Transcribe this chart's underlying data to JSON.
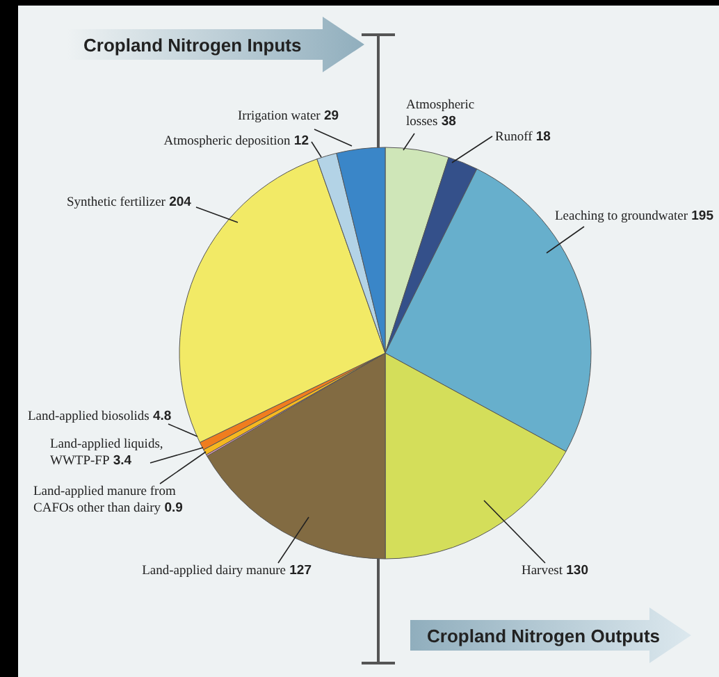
{
  "chart_data": {
    "type": "pie",
    "categories": [
      "Atmospheric losses",
      "Runoff",
      "Leaching to groundwater",
      "Harvest",
      "Land-applied dairy manure",
      "Land-applied manure from CAFOs other than dairy",
      "Land-applied liquids, WWTP-FP",
      "Land-applied biosolids",
      "Synthetic fertilizer",
      "Atmospheric deposition",
      "Irrigation water"
    ],
    "values": [
      38,
      18,
      195,
      130,
      127,
      0.9,
      3.4,
      4.8,
      204,
      12,
      29
    ],
    "colors": [
      "#cfe6b8",
      "#34508a",
      "#67afcc",
      "#d4de5a",
      "#826b42",
      "#f0a6c8",
      "#f5b820",
      "#f07d1e",
      "#f2ea66",
      "#b3d3e6",
      "#3a86c8"
    ],
    "data_labels": true,
    "annotations": [
      "Cropland Nitrogen Inputs",
      "Cropland Nitrogen Outputs"
    ]
  }
}
